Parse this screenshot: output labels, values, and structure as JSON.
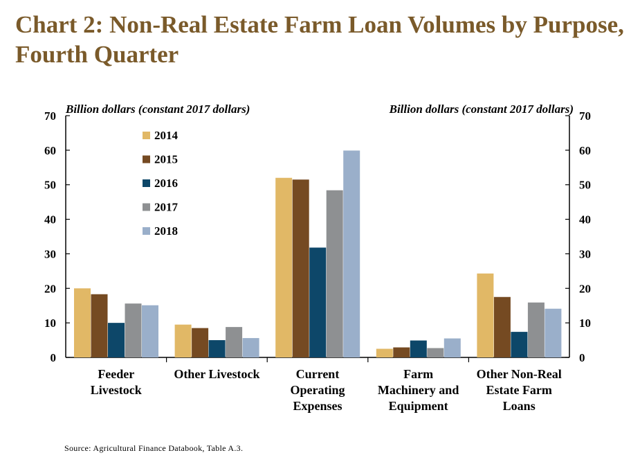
{
  "title": "Chart 2: Non-Real Estate Farm Loan Volumes by Purpose, Fourth Quarter",
  "source": "Source: Agricultural Finance Databook, Table A.3.",
  "chart_data": {
    "type": "bar",
    "left_axis_label": "Billion dollars (constant 2017 dollars)",
    "right_axis_label": "Billion dollars (constant 2017 dollars)",
    "ylim": [
      0,
      70
    ],
    "yticks": [
      0,
      10,
      20,
      30,
      40,
      50,
      60,
      70
    ],
    "categories": [
      [
        "Feeder",
        "Livestock"
      ],
      [
        "Other Livestock"
      ],
      [
        "Current",
        "Operating",
        "Expenses"
      ],
      [
        "Farm",
        "Machinery and",
        "Equipment"
      ],
      [
        "Other Non-Real",
        "Estate Farm",
        "Loans"
      ]
    ],
    "series": [
      {
        "name": "2014",
        "color": "#e1b866",
        "values": [
          20.0,
          9.5,
          52.0,
          2.5,
          24.3
        ]
      },
      {
        "name": "2015",
        "color": "#754a22",
        "values": [
          18.3,
          8.5,
          51.5,
          2.9,
          17.5
        ]
      },
      {
        "name": "2016",
        "color": "#0d4769",
        "values": [
          10.0,
          5.0,
          31.8,
          4.9,
          7.4
        ]
      },
      {
        "name": "2017",
        "color": "#8e9092",
        "values": [
          15.6,
          8.8,
          48.4,
          2.7,
          15.9
        ]
      },
      {
        "name": "2018",
        "color": "#9aafca",
        "values": [
          15.1,
          5.6,
          59.9,
          5.5,
          14.1
        ]
      }
    ],
    "legend_position": "top-left inside plot",
    "grid": false
  }
}
